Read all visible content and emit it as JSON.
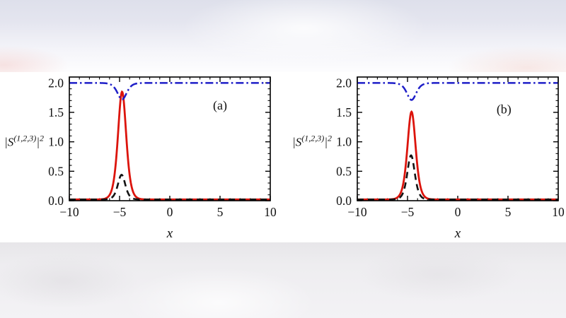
{
  "figure": {
    "description": "Two-panel line figure of soliton intensities |S|^2 versus x on a blurred page background",
    "background": {
      "top_band_tint": "#dee0eb",
      "bottom_band_tint": "#eeedf0",
      "figure_panel": "#ffffff"
    },
    "colors": {
      "red_solid": "#dc140c",
      "blue_dashdot": "#1f1fc8",
      "black_dashed": "#131313",
      "frame": "#000000",
      "text": "#111111"
    }
  },
  "chart_data": [
    {
      "id": "a",
      "type": "line",
      "title": "",
      "panel_label": "(a)",
      "panel_label_pos": {
        "x": 5.0,
        "y": 1.55
      },
      "xlabel": "x",
      "ylabel_plain": "|S^(1,2,3)|^2",
      "ylabel_parts": [
        {
          "t": "|S",
          "sup": false
        },
        {
          "t": "(1,2,3)",
          "sup": true
        },
        {
          "t": "|",
          "sup": false
        },
        {
          "t": "2",
          "sup": true
        }
      ],
      "xlim": [
        -10,
        10
      ],
      "ylim": [
        0,
        2.1
      ],
      "x_major_ticks": [
        -10,
        -5,
        0,
        5,
        10
      ],
      "x_tick_labels": [
        "−10",
        "−5",
        "0",
        "5",
        "10"
      ],
      "x_minor_step": 1,
      "y_major_ticks": [
        0,
        0.5,
        1,
        1.5,
        2
      ],
      "y_tick_labels": [
        "0.0",
        "0.5",
        "1.0",
        "1.5",
        "2.0"
      ],
      "y_minor_step": 0.1,
      "grid": false,
      "legend": "none",
      "series": [
        {
          "name": "red-solid-soliton-peak",
          "style": "solid",
          "color": "#dc140c",
          "width": 2.8,
          "model": "sech2",
          "baseline": 0.02,
          "extremum": 1.85,
          "center": -4.75,
          "halfwidth": 0.55
        },
        {
          "name": "black-dashed-soliton-peak",
          "style": "dashed",
          "color": "#131313",
          "width": 2.6,
          "model": "sech2",
          "baseline": 0.02,
          "extremum": 0.44,
          "center": -4.8,
          "halfwidth": 0.5
        },
        {
          "name": "blue-dashdot-background-dip",
          "style": "dashdot",
          "color": "#1f1fc8",
          "width": 2.5,
          "model": "sech2",
          "baseline": 2.0,
          "extremum": 1.72,
          "center": -4.75,
          "halfwidth": 0.62
        }
      ]
    },
    {
      "id": "b",
      "type": "line",
      "title": "",
      "panel_label": "(b)",
      "panel_label_pos": {
        "x": 4.6,
        "y": 1.48
      },
      "xlabel": "x",
      "ylabel_plain": "|S^(1,2,3)|^2",
      "ylabel_parts": [
        {
          "t": "|S",
          "sup": false
        },
        {
          "t": "(1,2,3)",
          "sup": true
        },
        {
          "t": "|",
          "sup": false
        },
        {
          "t": "2",
          "sup": true
        }
      ],
      "xlim": [
        -10,
        10
      ],
      "ylim": [
        0,
        2.1
      ],
      "x_major_ticks": [
        -10,
        -5,
        0,
        5,
        10
      ],
      "x_tick_labels": [
        "−10",
        "−5",
        "0",
        "5",
        "10"
      ],
      "x_minor_step": 1,
      "y_major_ticks": [
        0,
        0.5,
        1,
        1.5,
        2
      ],
      "y_tick_labels": [
        "0.0",
        "0.5",
        "1.0",
        "1.5",
        "2.0"
      ],
      "y_minor_step": 0.1,
      "grid": false,
      "legend": "none",
      "series": [
        {
          "name": "red-solid-soliton-peak",
          "style": "solid",
          "color": "#dc140c",
          "width": 2.8,
          "model": "sech2",
          "baseline": 0.02,
          "extremum": 1.51,
          "center": -4.6,
          "halfwidth": 0.55
        },
        {
          "name": "black-dashed-soliton-peak",
          "style": "dashed",
          "color": "#131313",
          "width": 2.6,
          "model": "sech2",
          "baseline": 0.02,
          "extremum": 0.77,
          "center": -4.65,
          "halfwidth": 0.5
        },
        {
          "name": "blue-dashdot-background-dip",
          "style": "dashdot",
          "color": "#1f1fc8",
          "width": 2.5,
          "model": "sech2",
          "baseline": 2.0,
          "extremum": 1.71,
          "center": -4.6,
          "halfwidth": 0.62
        }
      ]
    }
  ]
}
